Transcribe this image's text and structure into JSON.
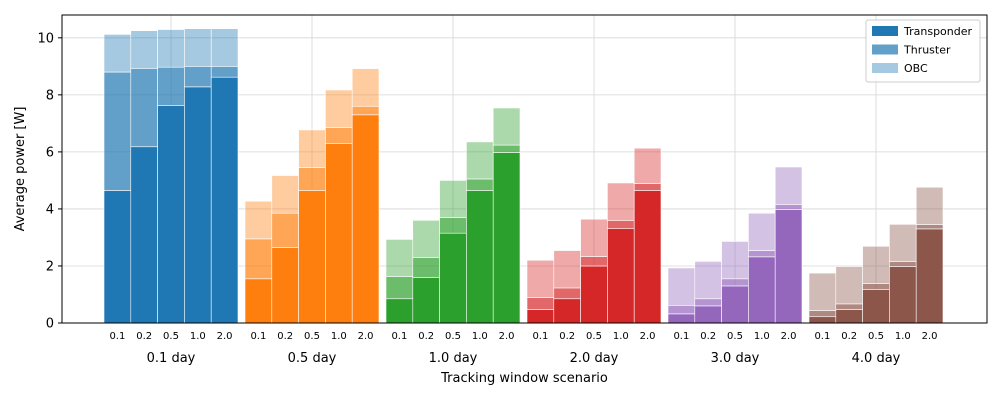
{
  "chart_data": {
    "type": "bar",
    "subtype": "stacked-grouped",
    "xlabel": "Tracking window scenario",
    "ylabel": "Average power [W]",
    "ylim": [
      0,
      10.8
    ],
    "yticks": [
      0,
      2,
      4,
      6,
      8,
      10
    ],
    "grid": true,
    "legend_position": "top-right",
    "groups": [
      "0.1 day",
      "0.5 day",
      "1.0 day",
      "2.0 day",
      "3.0 day",
      "4.0 day"
    ],
    "subcategories": [
      "0.1",
      "0.2",
      "0.5",
      "1.0",
      "2.0"
    ],
    "group_colors": [
      "#1f77b4",
      "#ff7f0e",
      "#2ca02c",
      "#d62728",
      "#9467bd",
      "#8c564b"
    ],
    "series": [
      {
        "name": "Transponder",
        "opacity": 1.0,
        "values": [
          [
            4.65,
            6.18,
            7.62,
            8.28,
            8.62
          ],
          [
            1.55,
            2.65,
            4.65,
            6.3,
            7.3
          ],
          [
            0.85,
            1.6,
            3.15,
            4.65,
            5.98
          ],
          [
            0.47,
            0.85,
            2.0,
            3.32,
            4.65
          ],
          [
            0.32,
            0.6,
            1.3,
            2.32,
            3.98
          ],
          [
            0.22,
            0.47,
            1.18,
            1.98,
            3.3
          ]
        ]
      },
      {
        "name": "Thruster",
        "opacity": 0.7,
        "values": [
          [
            4.15,
            2.75,
            1.35,
            0.72,
            0.38
          ],
          [
            1.4,
            1.2,
            0.8,
            0.55,
            0.3
          ],
          [
            0.78,
            0.7,
            0.55,
            0.4,
            0.26
          ],
          [
            0.42,
            0.38,
            0.33,
            0.28,
            0.24
          ],
          [
            0.3,
            0.25,
            0.25,
            0.22,
            0.18
          ],
          [
            0.22,
            0.2,
            0.2,
            0.17,
            0.15
          ]
        ]
      },
      {
        "name": "OBC",
        "opacity": 0.4,
        "values": [
          [
            1.32,
            1.32,
            1.32,
            1.32,
            1.32
          ],
          [
            1.32,
            1.32,
            1.32,
            1.32,
            1.32
          ],
          [
            1.3,
            1.3,
            1.3,
            1.3,
            1.3
          ],
          [
            1.31,
            1.31,
            1.31,
            1.31,
            1.24
          ],
          [
            1.31,
            1.31,
            1.31,
            1.31,
            1.31
          ],
          [
            1.31,
            1.31,
            1.31,
            1.31,
            1.31
          ]
        ]
      }
    ]
  }
}
